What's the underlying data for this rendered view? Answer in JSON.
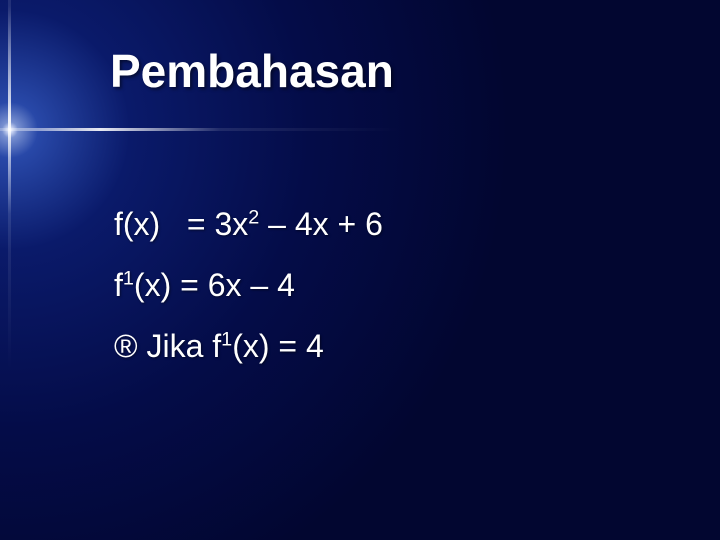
{
  "slide": {
    "background_center": "#ffffff",
    "background_mid": "#0a1a6a",
    "background_outer": "#020630",
    "flare_color": "#ffffff",
    "text_color": "#ffffff",
    "title_fontsize": 46,
    "body_fontsize": 32,
    "title": "Pembahasan",
    "lines": {
      "l1_pre": "f(x)   = 3x",
      "l1_sup": "2",
      "l1_post": " – 4x + 6",
      "l2_pre": "f",
      "l2_sup": "1",
      "l2_post": "(x) = 6x – 4",
      "l3_arrow": "®",
      "l3_pre": " Jika f",
      "l3_sup": "1",
      "l3_post": "(x) =  4"
    }
  }
}
